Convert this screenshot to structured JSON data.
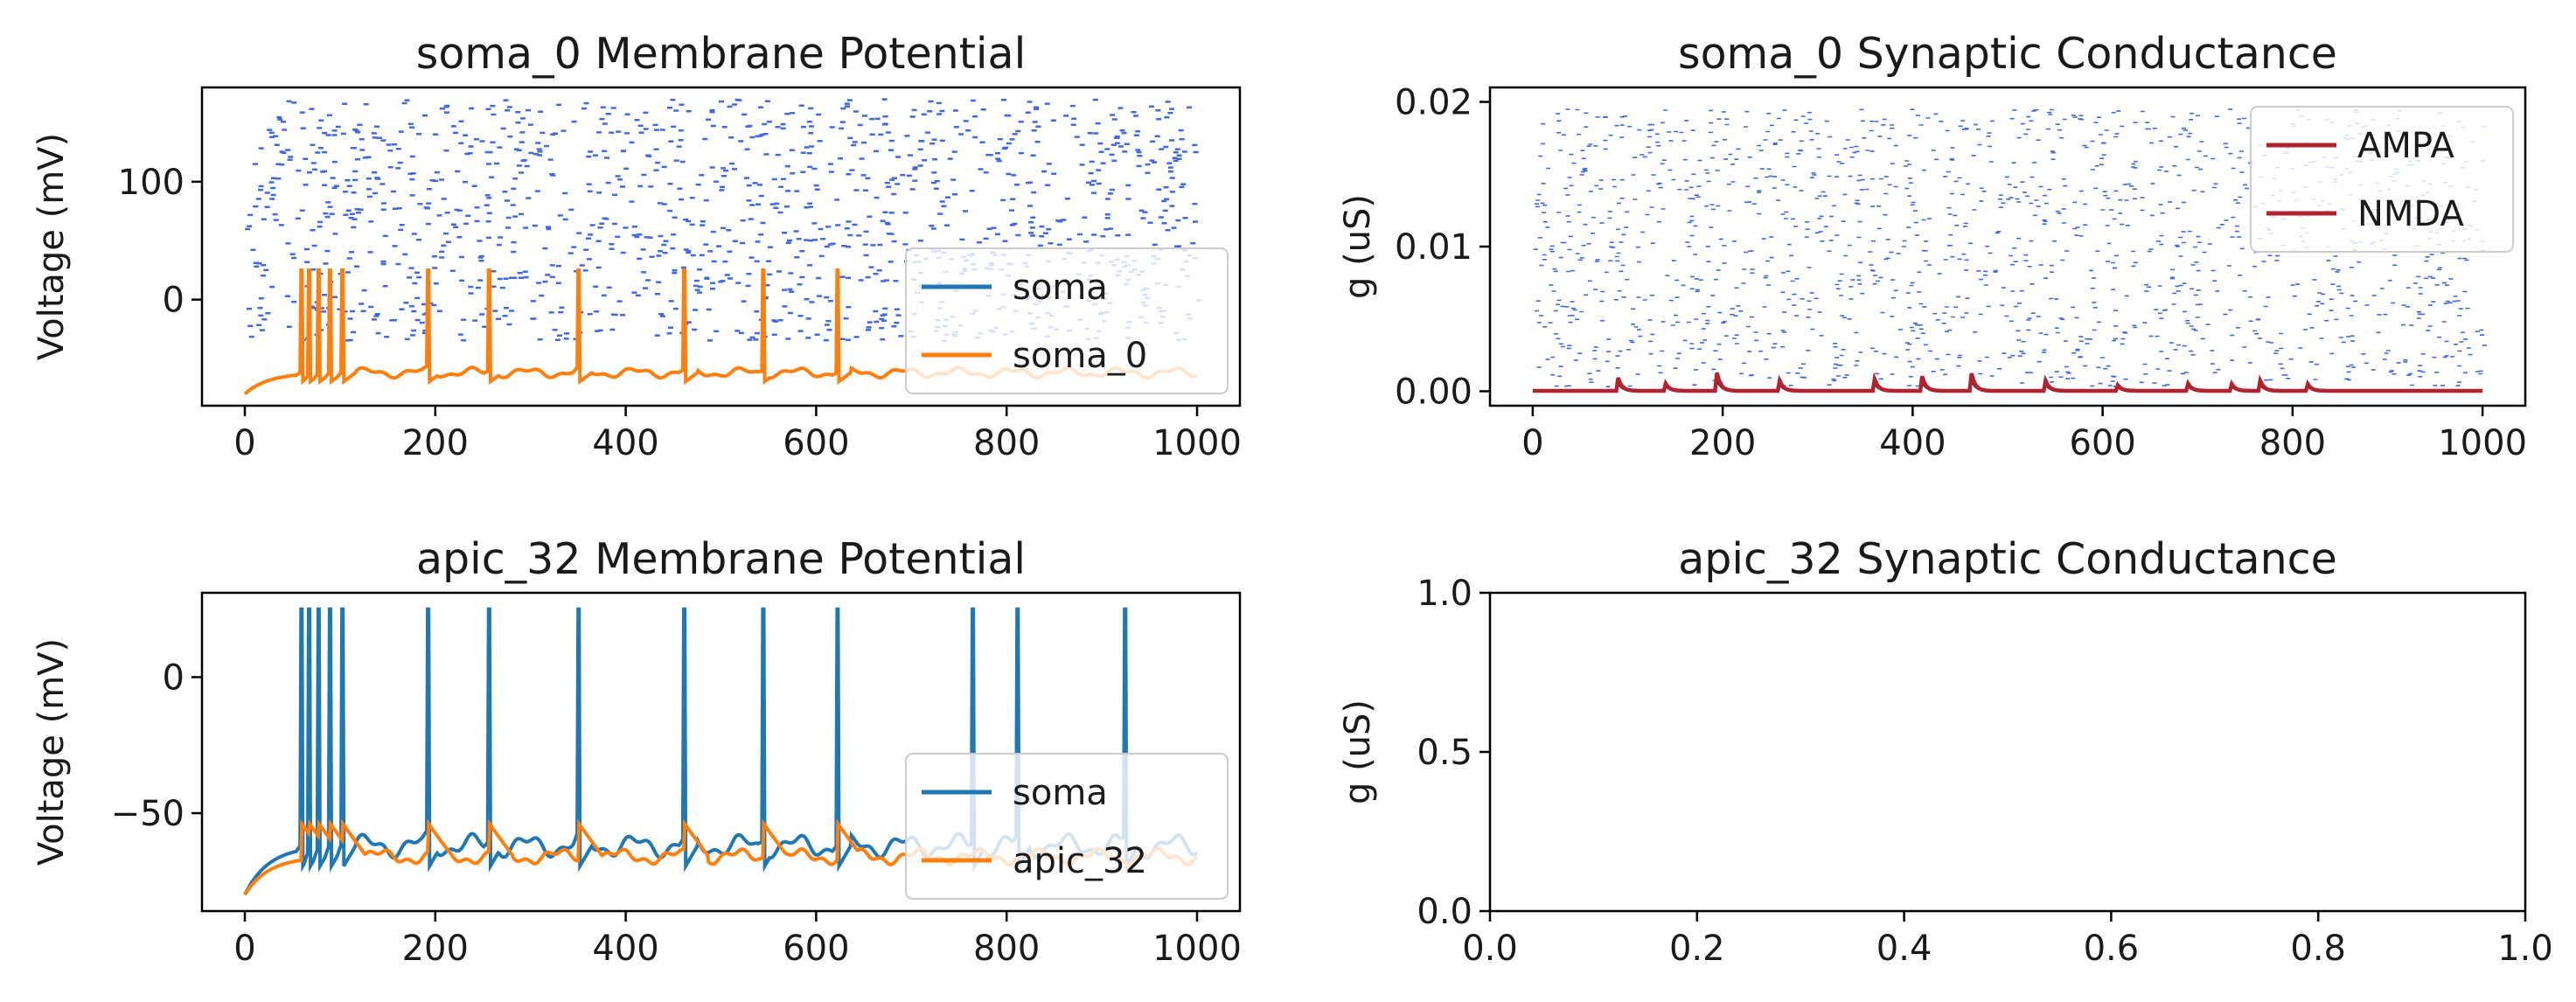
{
  "chart_data": [
    {
      "type": "line",
      "title": "soma_0 Membrane Potential",
      "xlabel": "",
      "ylabel": "Voltage (mV)",
      "xlim": [
        -45,
        1045
      ],
      "ylim": [
        -90,
        180
      ],
      "xticks": [
        "0",
        "200",
        "400",
        "600",
        "800",
        "1000"
      ],
      "yticks": [
        "0",
        "100"
      ],
      "xtick_values": [
        0,
        200,
        400,
        600,
        800,
        1000
      ],
      "ytick_values": [
        0,
        100
      ],
      "legend_position": "lower right",
      "series": [
        {
          "name": "soma",
          "color": "#1f77b4"
        },
        {
          "name": "soma_0",
          "color": "#ff7f0e"
        }
      ],
      "spike_times": [
        60,
        68,
        78,
        90,
        103,
        193,
        257,
        351,
        462,
        545,
        623
      ],
      "peak_voltage": 25,
      "resting_voltage": -62,
      "start_voltage": -80,
      "raster": {
        "color": "#4169e1",
        "y_range": [
          -35,
          170
        ],
        "note": "synaptic input event markers"
      }
    },
    {
      "type": "line",
      "title": "soma_0 Synaptic Conductance",
      "xlabel": "",
      "ylabel": "g (uS)",
      "xlim": [
        -45,
        1045
      ],
      "ylim": [
        -0.001,
        0.021
      ],
      "xticks": [
        "0",
        "200",
        "400",
        "600",
        "800",
        "1000"
      ],
      "yticks": [
        "0.00",
        "0.01",
        "0.02"
      ],
      "xtick_values": [
        0,
        200,
        400,
        600,
        800,
        1000
      ],
      "ytick_values": [
        0,
        0.01,
        0.02
      ],
      "legend_position": "upper right",
      "series": [
        {
          "name": "AMPA",
          "color": "#b2222f"
        },
        {
          "name": "NMDA",
          "color": "#b2222f"
        }
      ],
      "conductance_bumps": [
        {
          "t": 90,
          "g": 0.0009
        },
        {
          "t": 140,
          "g": 0.0005
        },
        {
          "t": 193,
          "g": 0.0016
        },
        {
          "t": 260,
          "g": 0.0007
        },
        {
          "t": 360,
          "g": 0.0008
        },
        {
          "t": 410,
          "g": 0.001
        },
        {
          "t": 462,
          "g": 0.0012
        },
        {
          "t": 540,
          "g": 0.0007
        },
        {
          "t": 615,
          "g": 0.0005
        },
        {
          "t": 690,
          "g": 0.0005
        },
        {
          "t": 735,
          "g": 0.0006
        },
        {
          "t": 765,
          "g": 0.0009
        },
        {
          "t": 815,
          "g": 0.0006
        }
      ],
      "raster": {
        "color": "#4169e1",
        "y_range": [
          0.0003,
          0.0195
        ],
        "note": "synaptic input event markers"
      }
    },
    {
      "type": "line",
      "title": "apic_32 Membrane Potential",
      "xlabel": "",
      "ylabel": "Voltage (mV)",
      "xlim": [
        -45,
        1045
      ],
      "ylim": [
        -86,
        31
      ],
      "xticks": [
        "0",
        "200",
        "400",
        "600",
        "800",
        "1000"
      ],
      "yticks": [
        "−50",
        "0"
      ],
      "xtick_values": [
        0,
        200,
        400,
        600,
        800,
        1000
      ],
      "ytick_values": [
        -50,
        0
      ],
      "legend_position": "lower right",
      "series": [
        {
          "name": "soma",
          "color": "#1f77b4",
          "spike_times": [
            60,
            68,
            78,
            90,
            103,
            193,
            257,
            351,
            462,
            545,
            623,
            765,
            812,
            925
          ],
          "peak_voltage": 25,
          "resting_voltage": -62
        },
        {
          "name": "apic_32",
          "color": "#ff7f0e",
          "spike_times": [
            60,
            68,
            78,
            90,
            103,
            193,
            257,
            351,
            462,
            545,
            623
          ],
          "peak_voltage": -54,
          "resting_voltage": -66
        }
      ]
    },
    {
      "type": "line",
      "title": "apic_32 Synaptic Conductance",
      "xlabel": "",
      "ylabel": "g (uS)",
      "xlim": [
        0,
        1
      ],
      "ylim": [
        0,
        1
      ],
      "xticks": [
        "0.0",
        "0.2",
        "0.4",
        "0.6",
        "0.8",
        "1.0"
      ],
      "yticks": [
        "0.0",
        "0.5",
        "1.0"
      ],
      "xtick_values": [
        0,
        0.2,
        0.4,
        0.6,
        0.8,
        1.0
      ],
      "ytick_values": [
        0,
        0.5,
        1.0
      ],
      "series": []
    }
  ]
}
